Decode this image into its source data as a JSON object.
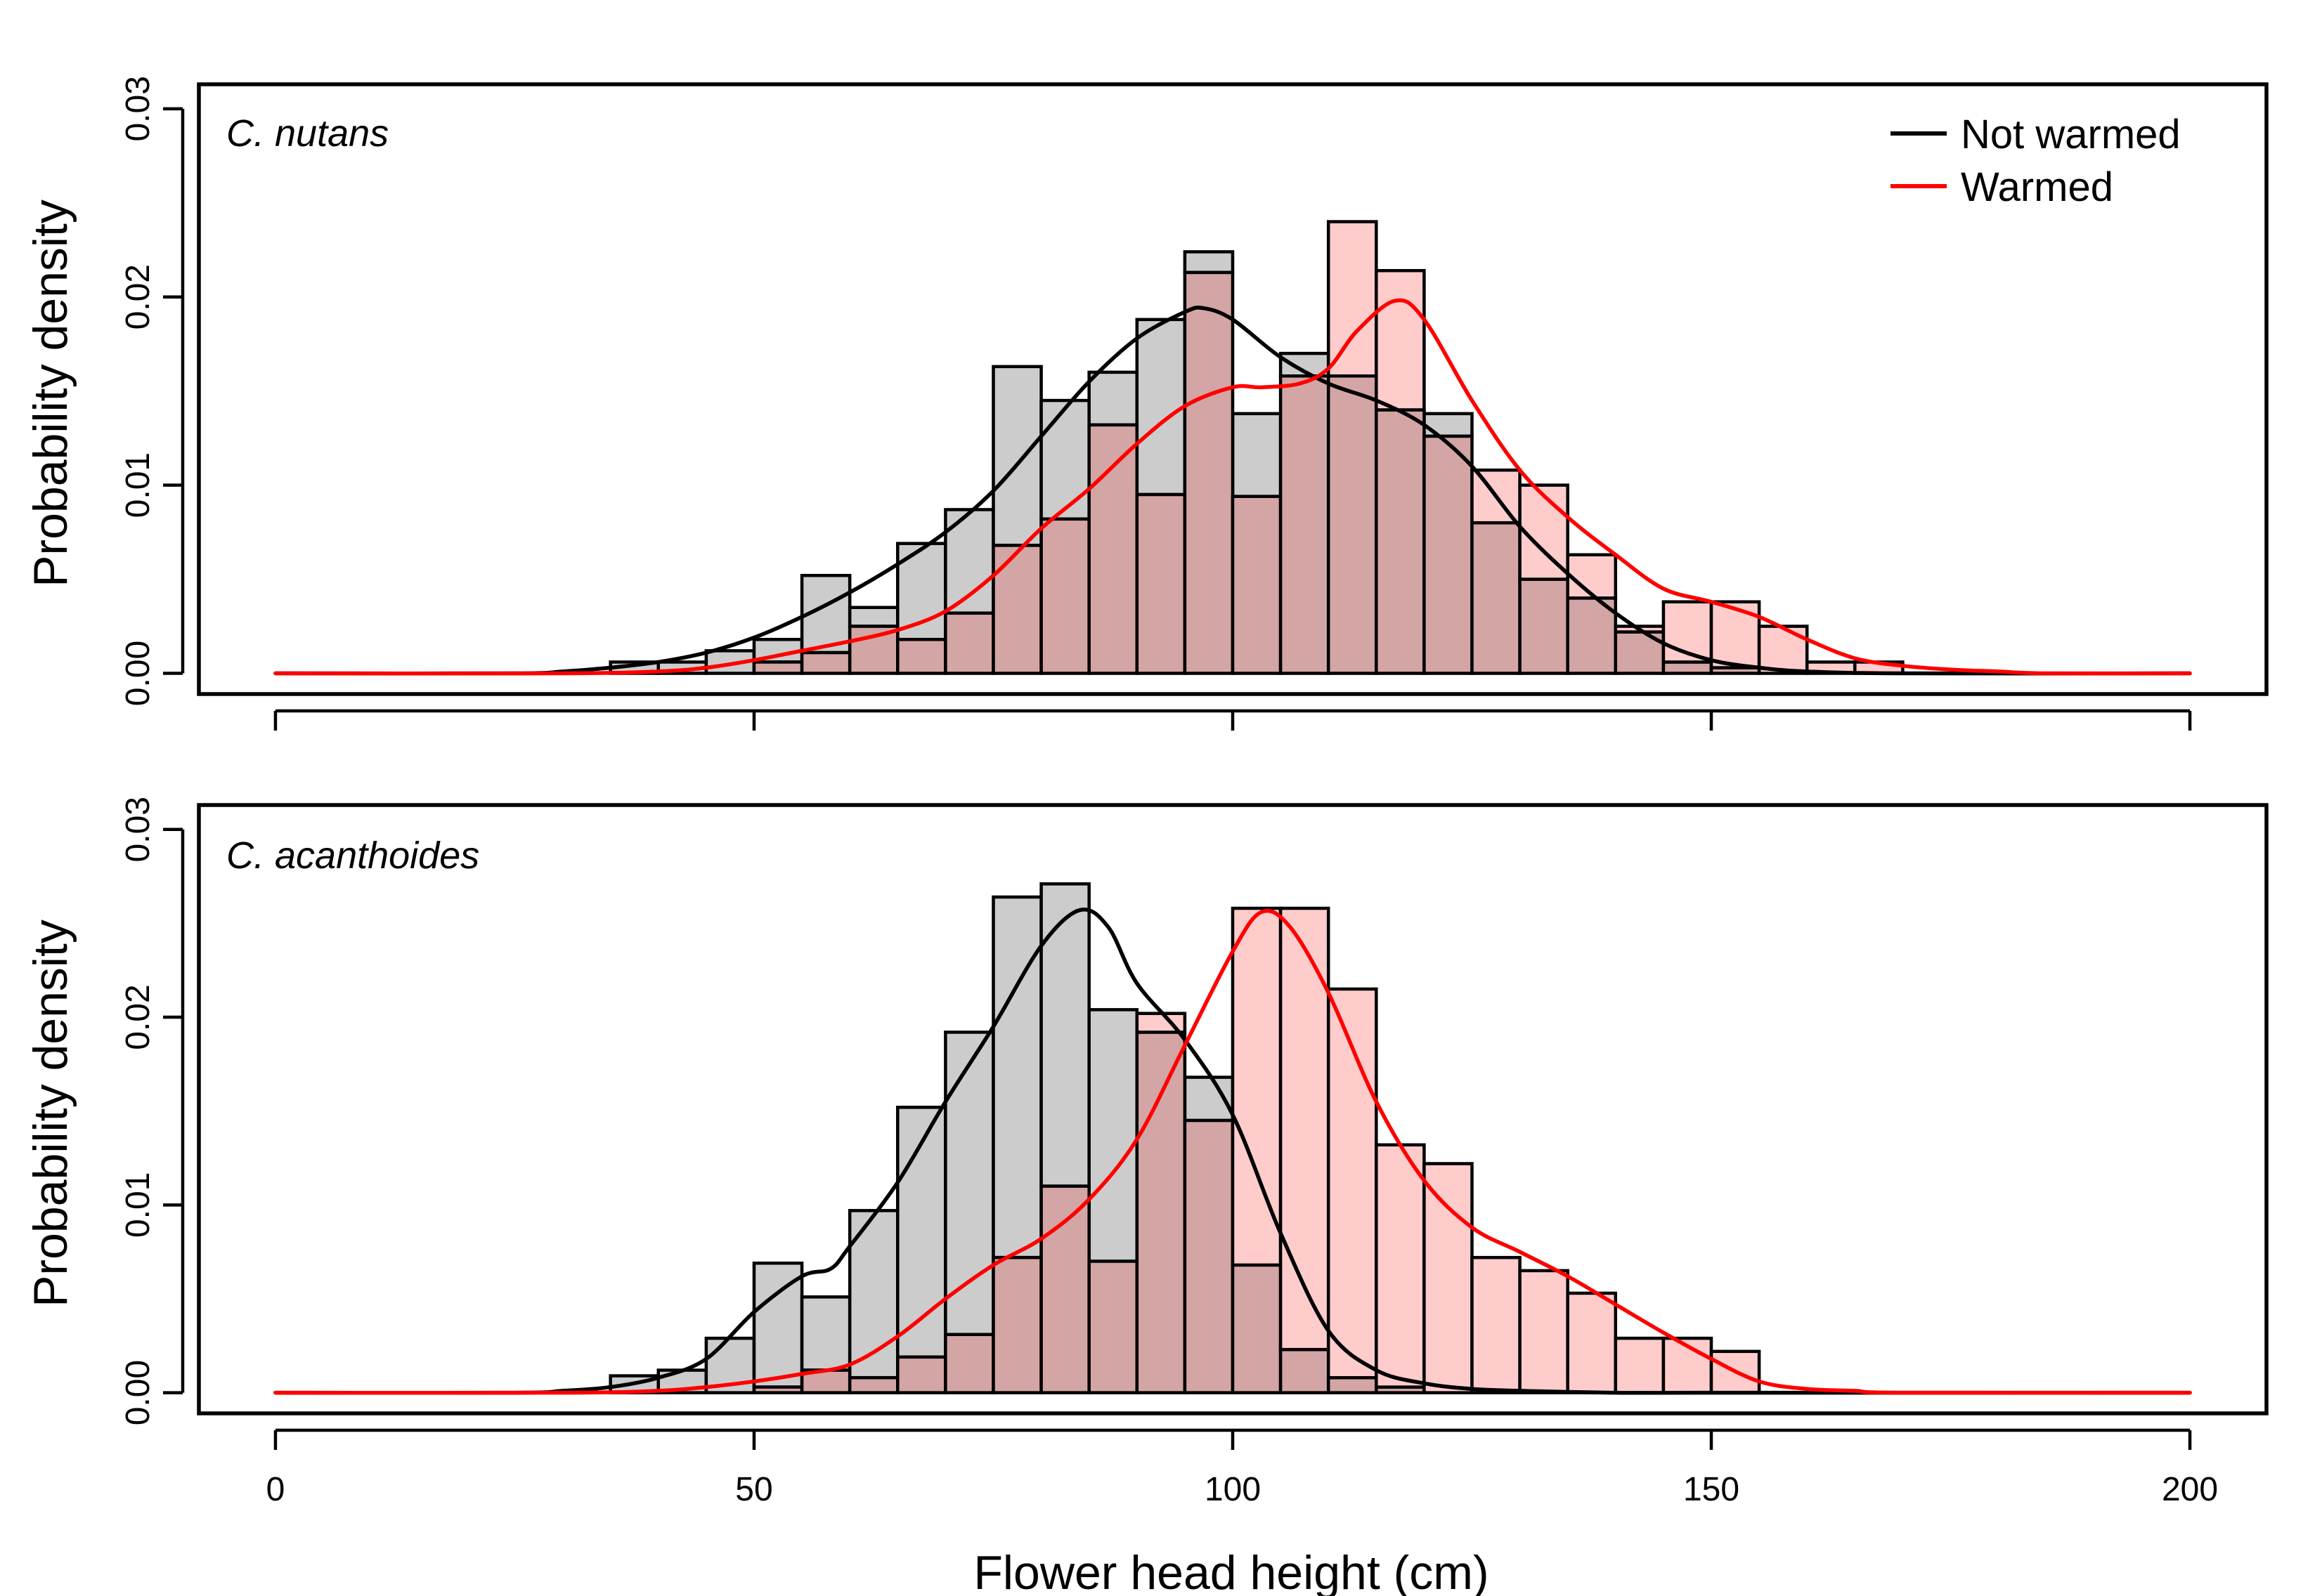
{
  "figure": {
    "xlabel": "Flower head height (cm)",
    "xticks": [
      0,
      50,
      100,
      150,
      200
    ],
    "xlim": [
      -8,
      208
    ],
    "bin_width": 5,
    "legend": {
      "position": "top-right",
      "entries": [
        {
          "name": "Not warmed",
          "color": "#000000"
        },
        {
          "name": "Warmed",
          "color": "#ff0000"
        }
      ]
    },
    "colors": {
      "not_warmed_fill": "#cccccc",
      "warmed_fill": "#ffcccc",
      "overlap_fill": "#d4a5a5"
    }
  },
  "chart_data": [
    {
      "type": "bar",
      "title": "C. nutans",
      "ylabel": "Probability density",
      "yticks": [
        "0.00",
        "0.01",
        "0.02",
        "0.03"
      ],
      "ylim": [
        -0.0011,
        0.0313
      ],
      "bin_starts": [
        35,
        40,
        45,
        50,
        55,
        60,
        65,
        70,
        75,
        80,
        85,
        90,
        95,
        100,
        105,
        110,
        115,
        120,
        125,
        130,
        135,
        140,
        145,
        150,
        155,
        160,
        165,
        170
      ],
      "series": [
        {
          "name": "Not warmed",
          "hist": [
            0.0006,
            0.0006,
            0.0012,
            0.0018,
            0.0052,
            0.0035,
            0.0069,
            0.0087,
            0.0163,
            0.0145,
            0.016,
            0.0188,
            0.0224,
            0.0138,
            0.017,
            0.0158,
            0.014,
            0.0138,
            0.008,
            0.005,
            0.004,
            0.0022,
            0.0006,
            0.0003,
            0,
            0,
            0,
            0
          ],
          "density": {
            "x": [
              0,
              25,
              30,
              35,
              40,
              45,
              50,
              55,
              60,
              65,
              70,
              75,
              80,
              85,
              90,
              95,
              97,
              100,
              105,
              110,
              115,
              120,
              125,
              130,
              135,
              140,
              145,
              150,
              155,
              160,
              170,
              200
            ],
            "y": [
              0,
              0,
              0.0001,
              0.0003,
              0.0006,
              0.0011,
              0.0019,
              0.003,
              0.0043,
              0.0058,
              0.0075,
              0.0097,
              0.0126,
              0.0155,
              0.0178,
              0.0192,
              0.0194,
              0.0188,
              0.0168,
              0.0154,
              0.0145,
              0.0132,
              0.011,
              0.0078,
              0.0053,
              0.0032,
              0.0016,
              0.0007,
              0.0003,
              0.0001,
              0,
              0
            ]
          }
        },
        {
          "name": "Warmed",
          "hist": [
            0,
            0,
            0,
            0.0006,
            0.0011,
            0.0025,
            0.0018,
            0.0032,
            0.0068,
            0.0082,
            0.0132,
            0.0095,
            0.0213,
            0.0094,
            0.0158,
            0.024,
            0.0214,
            0.0126,
            0.0108,
            0.01,
            0.0063,
            0.0025,
            0.0038,
            0.0038,
            0.0025,
            0.0006,
            0.0006,
            0
          ],
          "density": {
            "x": [
              0,
              30,
              40,
              45,
              50,
              55,
              60,
              65,
              70,
              75,
              80,
              85,
              90,
              95,
              100,
              103,
              107,
              110,
              113,
              117,
              120,
              125,
              130,
              135,
              140,
              145,
              150,
              155,
              160,
              165,
              170,
              175,
              180,
              185,
              200
            ],
            "y": [
              0,
              0,
              0.0001,
              0.0003,
              0.0007,
              0.0012,
              0.0017,
              0.0023,
              0.0033,
              0.0052,
              0.0077,
              0.0098,
              0.0122,
              0.0142,
              0.0152,
              0.0152,
              0.0154,
              0.0162,
              0.0182,
              0.0198,
              0.0188,
              0.0145,
              0.0108,
              0.0083,
              0.0063,
              0.0045,
              0.0038,
              0.003,
              0.0018,
              0.0008,
              0.0004,
              0.0002,
              0.0001,
              0,
              0
            ]
          }
        }
      ]
    },
    {
      "type": "bar",
      "title": "C. acanthoides",
      "ylabel": "Probability density",
      "yticks": [
        "0.00",
        "0.01",
        "0.02",
        "0.03"
      ],
      "ylim": [
        -0.0011,
        0.0313
      ],
      "bin_starts": [
        35,
        40,
        45,
        50,
        55,
        60,
        65,
        70,
        75,
        80,
        85,
        90,
        95,
        100,
        105,
        110,
        115,
        120,
        125,
        130,
        135,
        140,
        145,
        150
      ],
      "series": [
        {
          "name": "Not warmed",
          "hist": [
            0.0009,
            0.0012,
            0.0029,
            0.0069,
            0.0051,
            0.0097,
            0.0152,
            0.0192,
            0.0264,
            0.0271,
            0.0204,
            0.0192,
            0.0168,
            0.0068,
            0.0023,
            0.0008,
            0.0003,
            0,
            0,
            0,
            0,
            0,
            0,
            0
          ],
          "density": {
            "x": [
              0,
              25,
              30,
              35,
              40,
              45,
              50,
              55,
              58,
              60,
              65,
              70,
              75,
              80,
              84,
              87,
              90,
              95,
              100,
              105,
              110,
              115,
              120,
              125,
              130,
              140,
              150,
              200
            ],
            "y": [
              0,
              0,
              0.0001,
              0.0003,
              0.0008,
              0.0018,
              0.0043,
              0.0062,
              0.0066,
              0.0078,
              0.0112,
              0.0155,
              0.0195,
              0.0238,
              0.0257,
              0.0248,
              0.0218,
              0.0188,
              0.0148,
              0.0085,
              0.0033,
              0.0012,
              0.0005,
              0.0002,
              0.0001,
              0,
              0,
              0
            ]
          }
        },
        {
          "name": "Warmed",
          "hist": [
            0,
            0,
            0,
            0.0003,
            0.0012,
            0.0008,
            0.0019,
            0.0031,
            0.0072,
            0.011,
            0.007,
            0.0202,
            0.0145,
            0.0258,
            0.0258,
            0.0215,
            0.0132,
            0.0122,
            0.0072,
            0.0065,
            0.0053,
            0.0029,
            0.0029,
            0.0022
          ],
          "density": {
            "x": [
              0,
              30,
              40,
              45,
              50,
              55,
              60,
              65,
              70,
              75,
              80,
              85,
              90,
              95,
              100,
              103,
              106,
              110,
              115,
              120,
              125,
              130,
              135,
              140,
              145,
              150,
              155,
              160,
              165,
              170,
              200
            ],
            "y": [
              0,
              0,
              0.0001,
              0.0003,
              0.0006,
              0.001,
              0.0015,
              0.003,
              0.005,
              0.0068,
              0.0082,
              0.0103,
              0.0135,
              0.0185,
              0.0235,
              0.0256,
              0.0248,
              0.0213,
              0.0155,
              0.0113,
              0.0088,
              0.0075,
              0.0062,
              0.0047,
              0.0032,
              0.0018,
              0.0006,
              0.0002,
              0.0001,
              0,
              0
            ]
          }
        }
      ]
    }
  ]
}
